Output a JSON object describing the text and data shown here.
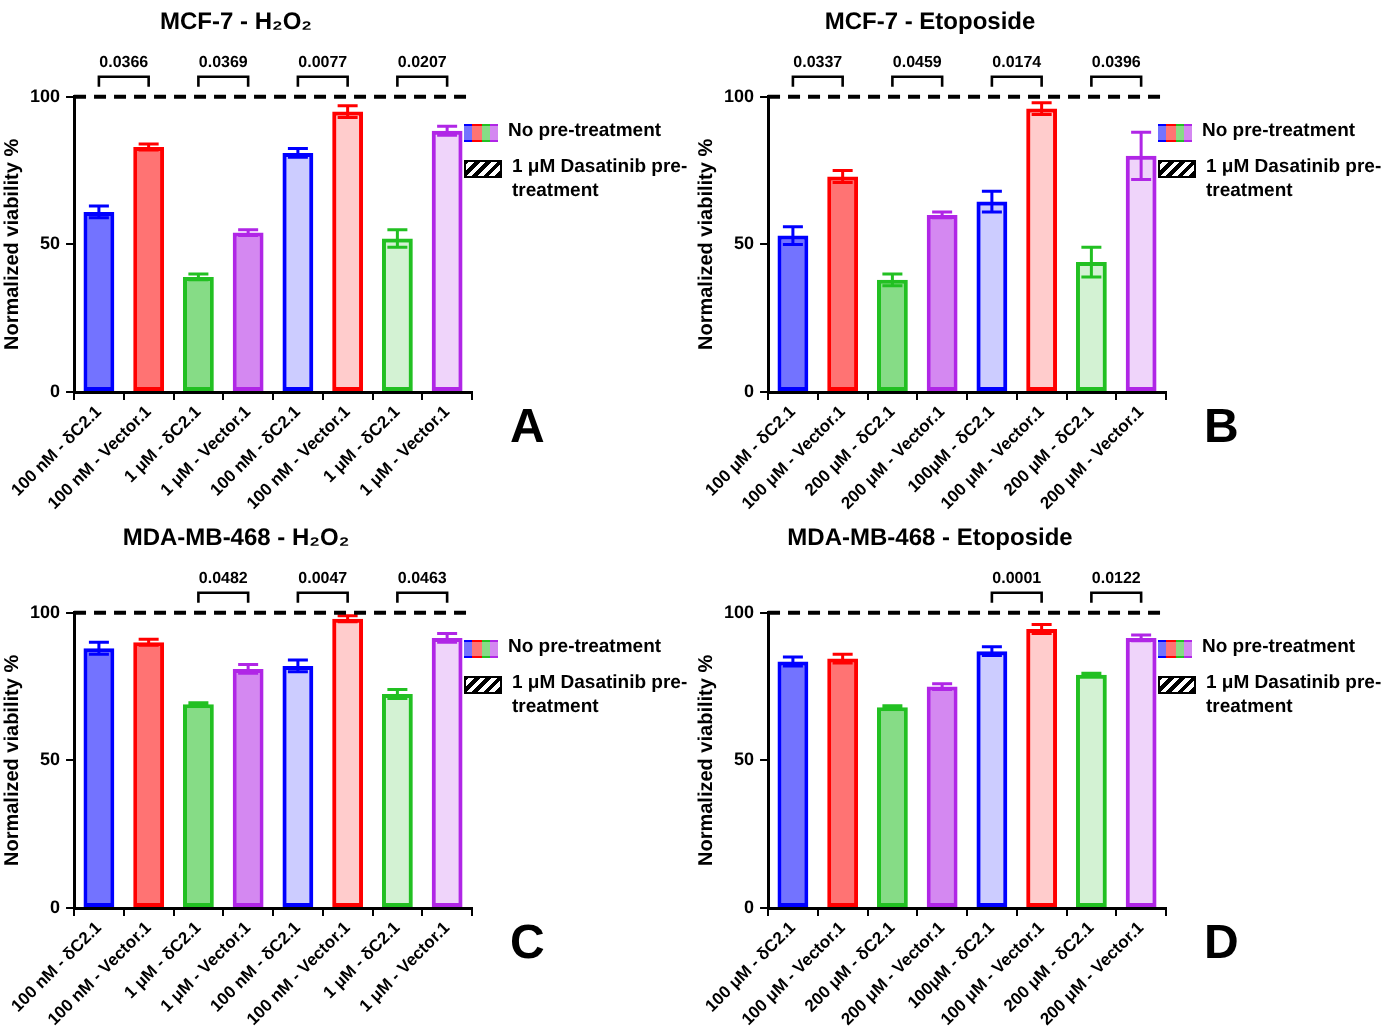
{
  "chart_data": [
    {
      "type": "bar",
      "title": "MCF-7 - H₂O₂",
      "ylabel": "Normalized viability %",
      "categories": [
        "100 nM - δC2.1",
        "100 nM - Vector.1",
        "1 μM - δC2.1",
        "1 μM - Vector.1",
        "100 nM - δC2.1",
        "100 nM - Vector.1",
        "1 μM - δC2.1",
        "1 μM - Vector.1"
      ],
      "series": [
        {
          "name": "No pre-treatment",
          "colors": [
            "#0000ff",
            "#ff0000",
            "#22c022",
            "#b026e6",
            "#0000ff",
            "#ff0000",
            "#22c022",
            "#b026e6"
          ],
          "values": [
            61,
            83,
            39,
            54,
            null,
            null,
            null,
            null
          ],
          "errors": [
            2,
            1,
            1,
            1,
            null,
            null,
            null,
            null
          ]
        },
        {
          "name": "1 μM Dasatinib pre-treatment",
          "color": "#000000",
          "colors": [
            "#0000ff",
            "#ff0000",
            "#22c022",
            "#b026e6",
            "#0000ff",
            "#ff0000",
            "#22c022",
            "#b026e6"
          ],
          "values": [
            null,
            null,
            null,
            null,
            81,
            95,
            52,
            88.5
          ],
          "errors": [
            null,
            null,
            null,
            null,
            1.5,
            2,
            3,
            1.5
          ]
        }
      ],
      "ylim": [
        0,
        100
      ],
      "yticks": [
        0,
        50,
        100
      ],
      "ref_lines": [
        {
          "axis": "y",
          "value": 100,
          "color": "#000000",
          "line_style": "dashed"
        }
      ],
      "legend": "right",
      "annotations": [
        "0.0366",
        "0.0369",
        "0.0077",
        "0.0207",
        "A"
      ]
    },
    {
      "type": "bar",
      "title": "MCF-7 - Etoposide",
      "ylabel": "Normalized viability %",
      "categories": [
        "100 μM - δC2.1",
        "100 μM - Vector.1",
        "200 μM - δC2.1",
        "200 μM - Vector.1",
        "100μM - δC2.1",
        "100 μM - Vector.1",
        "200 μM - δC2.1",
        "200 μM - Vector.1"
      ],
      "series": [
        {
          "name": "No pre-treatment",
          "colors": [
            "#0000ff",
            "#ff0000",
            "#22c022",
            "#b026e6",
            "#0000ff",
            "#ff0000",
            "#22c022",
            "#b026e6"
          ],
          "values": [
            53,
            73,
            38,
            60,
            null,
            null,
            null,
            null
          ],
          "errors": [
            3,
            2,
            2,
            1,
            null,
            null,
            null,
            null
          ]
        },
        {
          "name": "1 μM Dasatinib pre-treatment",
          "color": "#000000",
          "colors": [
            "#0000ff",
            "#ff0000",
            "#22c022",
            "#b026e6",
            "#0000ff",
            "#ff0000",
            "#22c022",
            "#b026e6"
          ],
          "values": [
            null,
            null,
            null,
            null,
            64.5,
            96,
            44,
            80
          ],
          "errors": [
            null,
            null,
            null,
            null,
            3.5,
            2,
            5,
            8
          ]
        }
      ],
      "ylim": [
        0,
        100
      ],
      "yticks": [
        0,
        50,
        100
      ],
      "ref_lines": [
        {
          "axis": "y",
          "value": 100,
          "color": "#000000",
          "line_style": "dashed"
        }
      ],
      "legend": "right",
      "annotations": [
        "0.0337",
        "0.0459",
        "0.0174",
        "0.0396",
        "B"
      ]
    },
    {
      "type": "bar",
      "title": "MDA-MB-468 - H₂O₂",
      "ylabel": "Normalized viability %",
      "categories": [
        "100 nM - δC2.1",
        "100 nM - Vector.1",
        "1 μM - δC2.1",
        "1 μM - Vector.1",
        "100 nM - δC2.1",
        "100 nM - Vector.1",
        "1 μM - δC2.1",
        "1 μM - Vector.1"
      ],
      "series": [
        {
          "name": "No pre-treatment",
          "colors": [
            "#0000ff",
            "#ff0000",
            "#22c022",
            "#b026e6",
            "#0000ff",
            "#ff0000",
            "#22c022",
            "#b026e6"
          ],
          "values": [
            88,
            90,
            69,
            81,
            null,
            null,
            null,
            null
          ],
          "errors": [
            2,
            1,
            0.5,
            1.5,
            null,
            null,
            null,
            null
          ]
        },
        {
          "name": "1 μM Dasatinib pre-treatment",
          "color": "#000000",
          "colors": [
            "#0000ff",
            "#ff0000",
            "#22c022",
            "#b026e6",
            "#0000ff",
            "#ff0000",
            "#22c022",
            "#b026e6"
          ],
          "values": [
            null,
            null,
            null,
            null,
            82,
            98,
            72.5,
            91.5
          ],
          "errors": [
            null,
            null,
            null,
            null,
            2,
            1,
            1.5,
            1.5
          ]
        }
      ],
      "ylim": [
        0,
        100
      ],
      "yticks": [
        0,
        50,
        100
      ],
      "ref_lines": [
        {
          "axis": "y",
          "value": 100,
          "color": "#000000",
          "line_style": "dashed"
        }
      ],
      "legend": "right",
      "annotations": [
        "0.0482",
        "0.0047",
        "0.0463",
        "C"
      ]
    },
    {
      "type": "bar",
      "title": "MDA-MB-468 - Etoposide",
      "ylabel": "Normalized viability %",
      "categories": [
        "100 μM - δC2.1",
        "100 μM - Vector.1",
        "200 μM - δC2.1",
        "200 μM - Vector.1",
        "100μM - δC2.1",
        "100 μM - Vector.1",
        "200 μM - δC2.1",
        "200 μM - Vector.1"
      ],
      "series": [
        {
          "name": "No pre-treatment",
          "colors": [
            "#0000ff",
            "#ff0000",
            "#22c022",
            "#b026e6",
            "#0000ff",
            "#ff0000",
            "#22c022",
            "#b026e6"
          ],
          "values": [
            83.5,
            84.5,
            68,
            75,
            null,
            null,
            null,
            null
          ],
          "errors": [
            1.5,
            1.5,
            0.5,
            1,
            null,
            null,
            null,
            null
          ]
        },
        {
          "name": "1 μM Dasatinib pre-treatment",
          "color": "#000000",
          "colors": [
            "#0000ff",
            "#ff0000",
            "#22c022",
            "#b026e6",
            "#0000ff",
            "#ff0000",
            "#22c022",
            "#b026e6"
          ],
          "values": [
            null,
            null,
            null,
            null,
            87,
            94.5,
            79,
            91.5
          ],
          "errors": [
            null,
            null,
            null,
            null,
            1.5,
            1.5,
            0.5,
            1
          ]
        }
      ],
      "ylim": [
        0,
        100
      ],
      "yticks": [
        0,
        50,
        100
      ],
      "ref_lines": [
        {
          "axis": "y",
          "value": 100,
          "color": "#000000",
          "line_style": "dashed"
        }
      ],
      "legend": "right",
      "annotations": [
        "0.0001",
        "0.0122",
        "D"
      ]
    }
  ]
}
